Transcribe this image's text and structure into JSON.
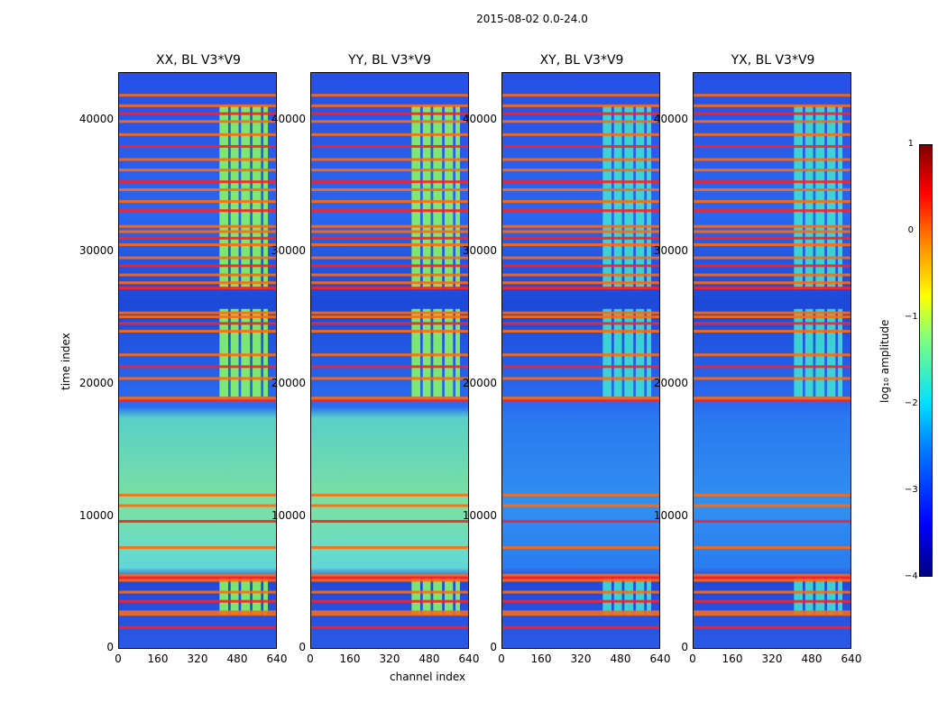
{
  "figure": {
    "suptitle": "2015-08-02 0.0-24.0"
  },
  "colorbar": {
    "label": "log₁₀ amplitude",
    "ticks": [
      "1",
      "0",
      "−1",
      "−2",
      "−3",
      "−4"
    ],
    "range": [
      -4,
      1
    ],
    "colormap": "jet"
  },
  "colors": {
    "band_orange": "#ff6a10",
    "band_red": "#ff2020",
    "band_yellow": "#f0ff40",
    "block_green": "#8cff60",
    "block_cyan": "#40e8d0"
  },
  "chart_data": [
    {
      "type": "heatmap",
      "title": "XX, BL V3*V9",
      "xlabel": "",
      "ylabel": "time index",
      "xlim": [
        0,
        640
      ],
      "ylim": [
        0,
        44000
      ],
      "xticks": [
        "0",
        "160",
        "320",
        "480",
        "640"
      ],
      "yticks": [
        "0",
        "10000",
        "20000",
        "30000",
        "40000"
      ]
    },
    {
      "type": "heatmap",
      "title": "YY, BL V3*V9",
      "xlabel": "channel index",
      "ylabel": "",
      "xlim": [
        0,
        640
      ],
      "ylim": [
        0,
        44000
      ],
      "xticks": [
        "0",
        "160",
        "320",
        "480",
        "640"
      ],
      "yticks": [
        "0",
        "10000",
        "20000",
        "30000",
        "40000"
      ]
    },
    {
      "type": "heatmap",
      "title": "XY, BL V3*V9",
      "xlabel": "",
      "ylabel": "",
      "xlim": [
        0,
        640
      ],
      "ylim": [
        0,
        44000
      ],
      "xticks": [
        "0",
        "160",
        "320",
        "480",
        "640"
      ],
      "yticks": [
        "0",
        "10000",
        "20000",
        "30000",
        "40000"
      ]
    },
    {
      "type": "heatmap",
      "title": "YX, BL V3*V9",
      "xlabel": "",
      "ylabel": "",
      "xlim": [
        0,
        640
      ],
      "ylim": [
        0,
        44000
      ],
      "xticks": [
        "0",
        "160",
        "320",
        "480",
        "640"
      ],
      "yticks": [
        "0",
        "10000",
        "20000",
        "30000",
        "40000"
      ]
    }
  ],
  "heatmap_features": {
    "horizontal_band_times": [
      1700,
      2700,
      2900,
      3700,
      4400,
      5300,
      5500,
      5700,
      7800,
      9800,
      11000,
      11800,
      19000,
      19200,
      20700,
      21600,
      22500,
      24300,
      24900,
      25400,
      25700,
      27600,
      28000,
      28600,
      29300,
      29900,
      30900,
      31400,
      31900,
      32300,
      33500,
      34200,
      35100,
      35700,
      36600,
      37400,
      38400,
      39300,
      40300,
      40900,
      41500,
      42300
    ],
    "channel_blocks": [
      [
        405,
        440
      ],
      [
        450,
        482
      ],
      [
        492,
        528
      ],
      [
        538,
        572
      ],
      [
        582,
        600
      ]
    ],
    "block_time_ranges": [
      [
        2700,
        5500
      ],
      [
        19300,
        26000
      ],
      [
        27500,
        41500
      ]
    ]
  }
}
